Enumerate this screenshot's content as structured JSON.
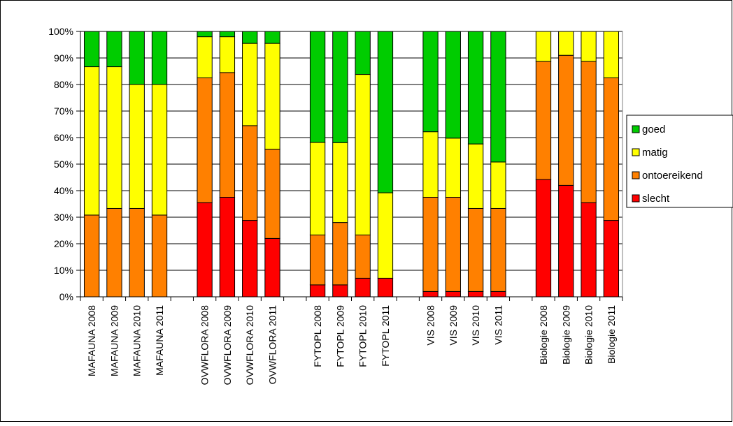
{
  "chart_data": {
    "type": "bar",
    "stacked": true,
    "percent": true,
    "categories": [
      "MAFAUNA 2008",
      "MAFAUNA 2009",
      "MAFAUNA 2010",
      "MAFAUNA 2011",
      "",
      "OVWFLORA 2008",
      "OVWFLORA 2009",
      "OVWFLORA 2010",
      "OVWFLORA 2011",
      "",
      "FYTOPL 2008",
      "FYTOPL 2009",
      "FYTOPL 2010",
      "FYTOPL 2011",
      "",
      "VIS 2008",
      "VIS 2009",
      "VIS 2010",
      "VIS 2011",
      "",
      "Biologie 2008",
      "Biologie 2009",
      "Biologie 2010",
      "Biologie 2011"
    ],
    "series": [
      {
        "name": "slecht",
        "color": "#FF0000",
        "values": [
          0,
          0,
          0,
          0,
          null,
          35.5,
          37.5,
          28.8,
          22.0,
          null,
          4.5,
          4.5,
          7.0,
          7.0,
          null,
          2.0,
          2.0,
          2.0,
          2.0,
          null,
          44.2,
          42.0,
          35.5,
          28.8
        ]
      },
      {
        "name": "ontoereikend",
        "color": "#FF8000",
        "values": [
          30.8,
          33.3,
          33.3,
          30.8,
          null,
          47.0,
          47.0,
          35.7,
          33.6,
          null,
          18.8,
          23.5,
          16.3,
          0,
          null,
          35.5,
          35.5,
          31.3,
          31.3,
          null,
          44.5,
          49.0,
          53.2,
          53.7
        ]
      },
      {
        "name": "matig",
        "color": "#FFFF00",
        "values": [
          55.9,
          53.4,
          46.7,
          49.2,
          null,
          15.5,
          13.5,
          31.0,
          39.9,
          null,
          34.9,
          30.1,
          60.5,
          32.2,
          null,
          24.7,
          22.3,
          24.3,
          17.5,
          null,
          11.3,
          9.0,
          11.3,
          17.5
        ]
      },
      {
        "name": "goed",
        "color": "#00CC00",
        "values": [
          13.3,
          13.3,
          20.0,
          20.0,
          null,
          2.0,
          2.0,
          4.5,
          4.5,
          null,
          41.8,
          41.9,
          16.2,
          60.8,
          null,
          37.8,
          40.2,
          42.4,
          49.2,
          null,
          0,
          0,
          0,
          0
        ]
      }
    ],
    "legend_order": [
      "goed",
      "matig",
      "ontoereikend",
      "slecht"
    ],
    "ylim": [
      0,
      100
    ],
    "yticks": [
      "0%",
      "10%",
      "20%",
      "30%",
      "40%",
      "50%",
      "60%",
      "70%",
      "80%",
      "90%",
      "100%"
    ],
    "grid": "horizontal",
    "legend_position": "right",
    "title": "",
    "xlabel": "",
    "ylabel": ""
  }
}
